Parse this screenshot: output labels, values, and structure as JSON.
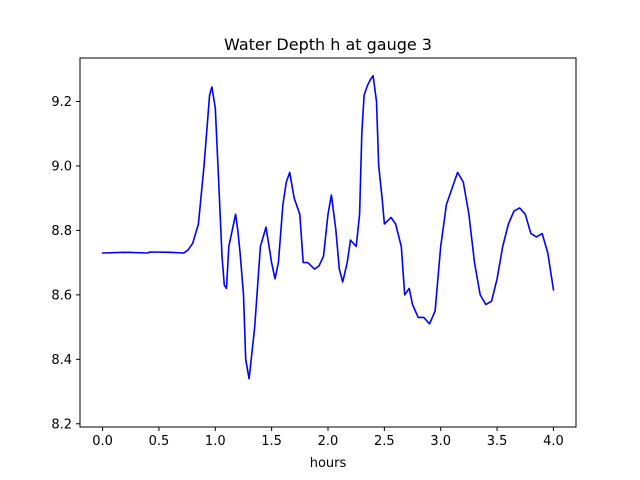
{
  "chart_data": {
    "type": "line",
    "title": "Water Depth h at gauge 3",
    "xlabel": "hours",
    "ylabel": "",
    "xlim": [
      -0.2,
      4.2
    ],
    "ylim": [
      8.19,
      9.335
    ],
    "xticks": [
      0.0,
      0.5,
      1.0,
      1.5,
      2.0,
      2.5,
      3.0,
      3.5,
      4.0
    ],
    "xtick_labels": [
      "0.0",
      "0.5",
      "1.0",
      "1.5",
      "2.0",
      "2.5",
      "3.0",
      "3.5",
      "4.0"
    ],
    "yticks": [
      8.2,
      8.4,
      8.6,
      8.8,
      9.0,
      9.2
    ],
    "ytick_labels": [
      "8.2",
      "8.4",
      "8.6",
      "8.8",
      "9.0",
      "9.2"
    ],
    "grid": false,
    "colors": {
      "line": "#0000ff"
    },
    "series": [
      {
        "x": [
          0.0,
          0.2,
          0.4,
          0.42,
          0.6,
          0.72,
          0.76,
          0.8,
          0.85,
          0.9,
          0.95,
          0.97,
          1.0,
          1.03,
          1.06,
          1.08,
          1.1,
          1.12,
          1.15,
          1.18,
          1.2,
          1.22,
          1.25,
          1.27,
          1.3,
          1.35,
          1.4,
          1.45,
          1.5,
          1.53,
          1.56,
          1.6,
          1.63,
          1.66,
          1.7,
          1.75,
          1.78,
          1.82,
          1.88,
          1.92,
          1.96,
          2.0,
          2.03,
          2.07,
          2.1,
          2.13,
          2.17,
          2.2,
          2.25,
          2.28,
          2.3,
          2.32,
          2.35,
          2.38,
          2.4,
          2.43,
          2.45,
          2.48,
          2.5,
          2.53,
          2.56,
          2.6,
          2.65,
          2.68,
          2.72,
          2.75,
          2.8,
          2.85,
          2.9,
          2.95,
          3.0,
          3.05,
          3.1,
          3.15,
          3.2,
          3.25,
          3.3,
          3.35,
          3.4,
          3.45,
          3.5,
          3.55,
          3.6,
          3.65,
          3.7,
          3.75,
          3.8,
          3.85,
          3.9,
          3.95,
          4.0
        ],
        "y": [
          8.73,
          8.732,
          8.73,
          8.733,
          8.732,
          8.73,
          8.74,
          8.76,
          8.82,
          9.0,
          9.22,
          9.245,
          9.18,
          8.95,
          8.72,
          8.63,
          8.62,
          8.75,
          8.8,
          8.85,
          8.8,
          8.73,
          8.6,
          8.4,
          8.34,
          8.5,
          8.75,
          8.81,
          8.7,
          8.65,
          8.7,
          8.88,
          8.95,
          8.98,
          8.9,
          8.85,
          8.7,
          8.7,
          8.68,
          8.69,
          8.72,
          8.85,
          8.91,
          8.8,
          8.68,
          8.64,
          8.7,
          8.77,
          8.75,
          8.85,
          9.1,
          9.22,
          9.25,
          9.27,
          9.28,
          9.2,
          9.0,
          8.9,
          8.82,
          8.83,
          8.84,
          8.82,
          8.75,
          8.6,
          8.62,
          8.57,
          8.53,
          8.53,
          8.51,
          8.55,
          8.75,
          8.88,
          8.93,
          8.98,
          8.95,
          8.85,
          8.7,
          8.6,
          8.57,
          8.58,
          8.65,
          8.75,
          8.82,
          8.86,
          8.87,
          8.85,
          8.79,
          8.78,
          8.79,
          8.73,
          8.615
        ]
      }
    ]
  }
}
